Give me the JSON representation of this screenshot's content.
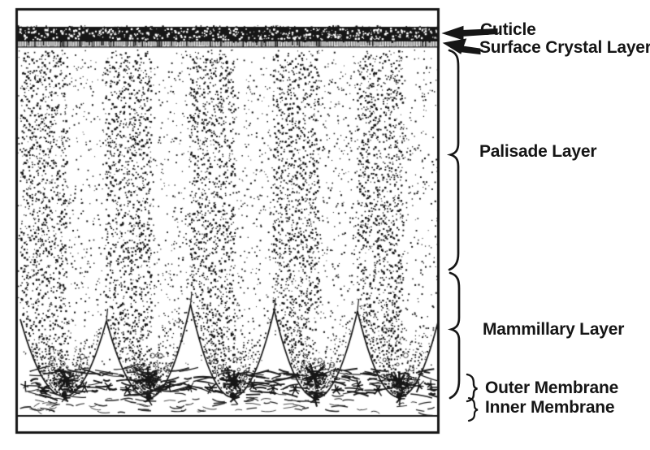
{
  "figure": {
    "type": "labeled-diagram",
    "subject": "Eggshell ultrastructure cross-section",
    "labels": {
      "cuticle": "Cuticle",
      "surface_crystal_layer": "Surface Crystal Layer",
      "palisade_layer": "Palisade Layer",
      "mammillary_layer": "Mammillary Layer",
      "outer_membrane": "Outer Membrane",
      "inner_membrane": "Inner Membrane"
    },
    "colors": {
      "ink": "#161616",
      "paper": "#ffffff"
    }
  }
}
